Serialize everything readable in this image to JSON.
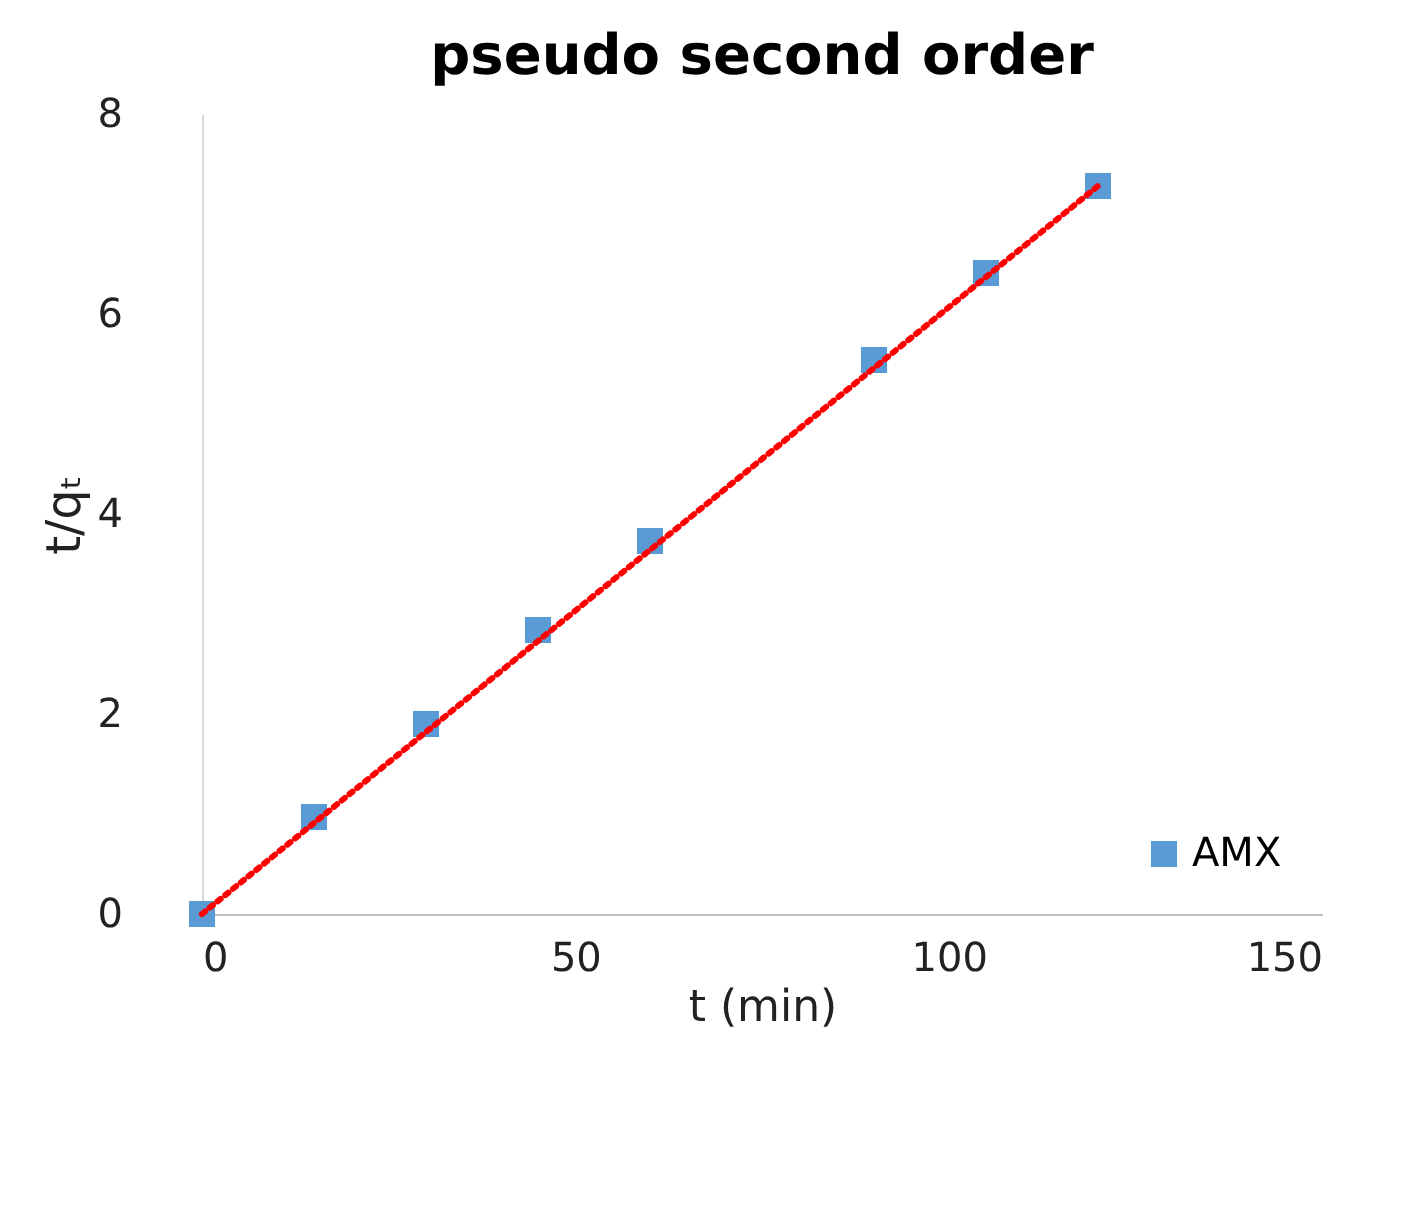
{
  "chart_data": {
    "type": "scatter",
    "title": "pseudo second order",
    "xlabel": "t (min)",
    "ylabel": "t/qₜ",
    "x": [
      0,
      15,
      30,
      45,
      60,
      90,
      105,
      120
    ],
    "series": [
      {
        "name": "AMX",
        "color": "#5b9bd5",
        "marker": "square",
        "values": [
          0,
          0.97,
          1.9,
          2.84,
          3.73,
          5.54,
          6.41,
          7.28
        ]
      },
      {
        "type": "line",
        "color": "#ff0000",
        "line_style": "dotted",
        "x": [
          0,
          120
        ],
        "values": [
          0,
          7.28
        ]
      }
    ],
    "xlim": [
      0,
      150
    ],
    "xticks": [
      0,
      50,
      100,
      150
    ],
    "ylim": [
      0,
      8
    ],
    "yticks": [
      0,
      2,
      4,
      6,
      8
    ],
    "grid": false,
    "legend": "bottom right"
  }
}
